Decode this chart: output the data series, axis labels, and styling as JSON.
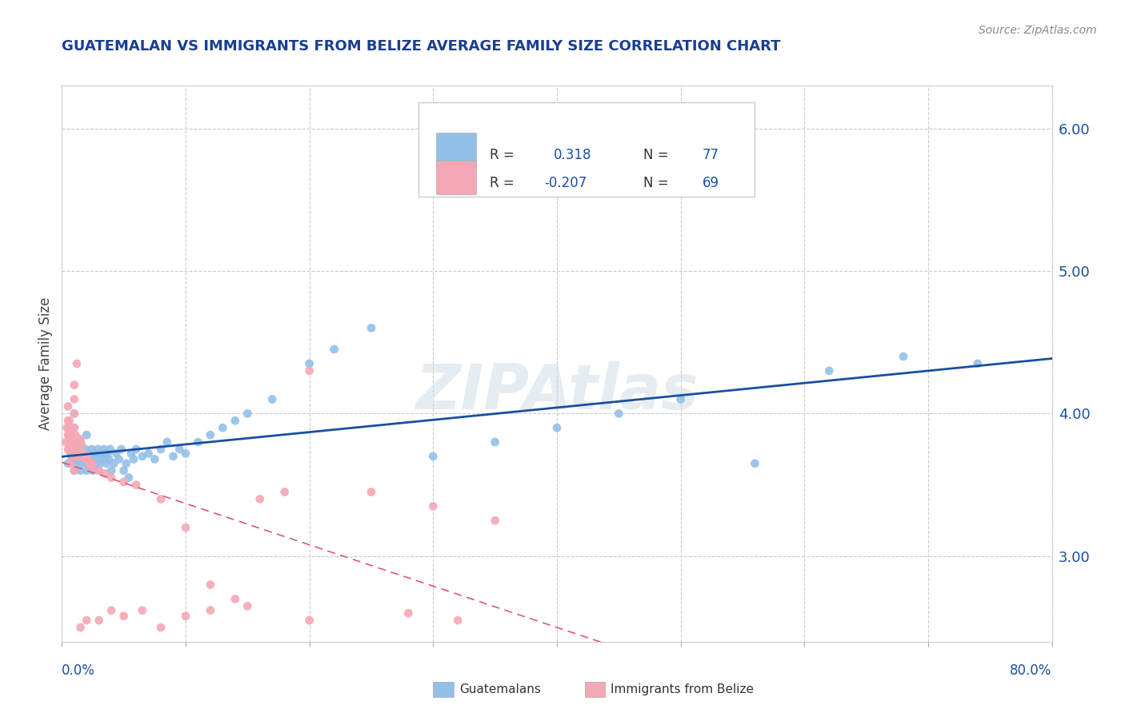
{
  "title": "GUATEMALAN VS IMMIGRANTS FROM BELIZE AVERAGE FAMILY SIZE CORRELATION CHART",
  "source": "Source: ZipAtlas.com",
  "ylabel": "Average Family Size",
  "yticks_right": [
    3.0,
    4.0,
    5.0,
    6.0
  ],
  "xlim": [
    0.0,
    0.8
  ],
  "ylim": [
    2.4,
    6.3
  ],
  "watermark": "ZIPAtlas",
  "blue_color": "#92C0E8",
  "pink_color": "#F4A8B5",
  "blue_line_color": "#1a4fa0",
  "pink_line_color": "#e05575",
  "pink_line_dash": [
    6,
    4
  ],
  "title_color": "#1a3f8f",
  "source_color": "#888888",
  "scatter_blue_x": [
    0.005,
    0.007,
    0.008,
    0.009,
    0.01,
    0.01,
    0.01,
    0.01,
    0.01,
    0.011,
    0.012,
    0.013,
    0.014,
    0.015,
    0.015,
    0.016,
    0.017,
    0.018,
    0.019,
    0.02,
    0.02,
    0.021,
    0.022,
    0.023,
    0.024,
    0.025,
    0.026,
    0.027,
    0.028,
    0.029,
    0.03,
    0.031,
    0.032,
    0.033,
    0.034,
    0.035,
    0.036,
    0.037,
    0.038,
    0.039,
    0.04,
    0.042,
    0.044,
    0.046,
    0.048,
    0.05,
    0.052,
    0.054,
    0.056,
    0.058,
    0.06,
    0.065,
    0.07,
    0.075,
    0.08,
    0.085,
    0.09,
    0.095,
    0.1,
    0.11,
    0.12,
    0.13,
    0.14,
    0.15,
    0.17,
    0.2,
    0.22,
    0.25,
    0.3,
    0.35,
    0.4,
    0.45,
    0.5,
    0.56,
    0.62,
    0.68,
    0.74
  ],
  "scatter_blue_y": [
    3.65,
    3.72,
    3.68,
    3.75,
    3.6,
    3.7,
    3.8,
    3.9,
    4.0,
    3.65,
    3.72,
    3.68,
    3.75,
    3.6,
    3.8,
    3.65,
    3.72,
    3.68,
    3.75,
    3.6,
    3.85,
    3.65,
    3.7,
    3.68,
    3.75,
    3.6,
    3.72,
    3.65,
    3.7,
    3.75,
    3.6,
    3.65,
    3.72,
    3.68,
    3.75,
    3.7,
    3.65,
    3.72,
    3.68,
    3.75,
    3.6,
    3.65,
    3.72,
    3.68,
    3.75,
    3.6,
    3.65,
    3.55,
    3.72,
    3.68,
    3.75,
    3.7,
    3.72,
    3.68,
    3.75,
    3.8,
    3.7,
    3.75,
    3.72,
    3.8,
    3.85,
    3.9,
    3.95,
    4.0,
    4.1,
    4.35,
    4.45,
    4.6,
    3.7,
    3.8,
    3.9,
    4.0,
    4.1,
    3.65,
    4.3,
    4.4,
    4.35
  ],
  "scatter_pink_x": [
    0.003,
    0.004,
    0.005,
    0.005,
    0.005,
    0.005,
    0.006,
    0.006,
    0.007,
    0.007,
    0.008,
    0.008,
    0.009,
    0.01,
    0.01,
    0.01,
    0.01,
    0.01,
    0.01,
    0.011,
    0.012,
    0.012,
    0.013,
    0.014,
    0.015,
    0.015,
    0.016,
    0.017,
    0.018,
    0.019,
    0.02,
    0.021,
    0.022,
    0.023,
    0.024,
    0.025,
    0.03,
    0.035,
    0.04,
    0.05,
    0.06,
    0.08,
    0.1,
    0.12,
    0.15,
    0.2,
    0.25,
    0.3,
    0.35,
    0.28,
    0.32,
    0.2,
    0.18,
    0.16,
    0.14,
    0.12,
    0.1,
    0.08,
    0.065,
    0.05,
    0.04,
    0.03,
    0.02,
    0.015,
    0.012,
    0.01,
    0.008,
    0.007,
    0.006
  ],
  "scatter_pink_y": [
    3.8,
    3.9,
    4.05,
    3.95,
    3.85,
    3.75,
    3.95,
    3.85,
    3.9,
    3.8,
    3.85,
    3.75,
    3.8,
    4.1,
    4.0,
    3.9,
    3.8,
    3.7,
    3.6,
    3.85,
    3.8,
    3.7,
    3.75,
    3.7,
    3.82,
    3.72,
    3.78,
    3.72,
    3.7,
    3.68,
    3.7,
    3.68,
    3.65,
    3.65,
    3.62,
    3.65,
    3.6,
    3.58,
    3.55,
    3.52,
    3.5,
    3.4,
    3.2,
    2.8,
    2.65,
    2.55,
    3.45,
    3.35,
    3.25,
    2.6,
    2.55,
    4.3,
    3.45,
    3.4,
    2.7,
    2.62,
    2.58,
    2.5,
    2.62,
    2.58,
    2.62,
    2.55,
    2.55,
    2.5,
    4.35,
    4.2,
    3.8,
    3.65,
    3.75
  ]
}
